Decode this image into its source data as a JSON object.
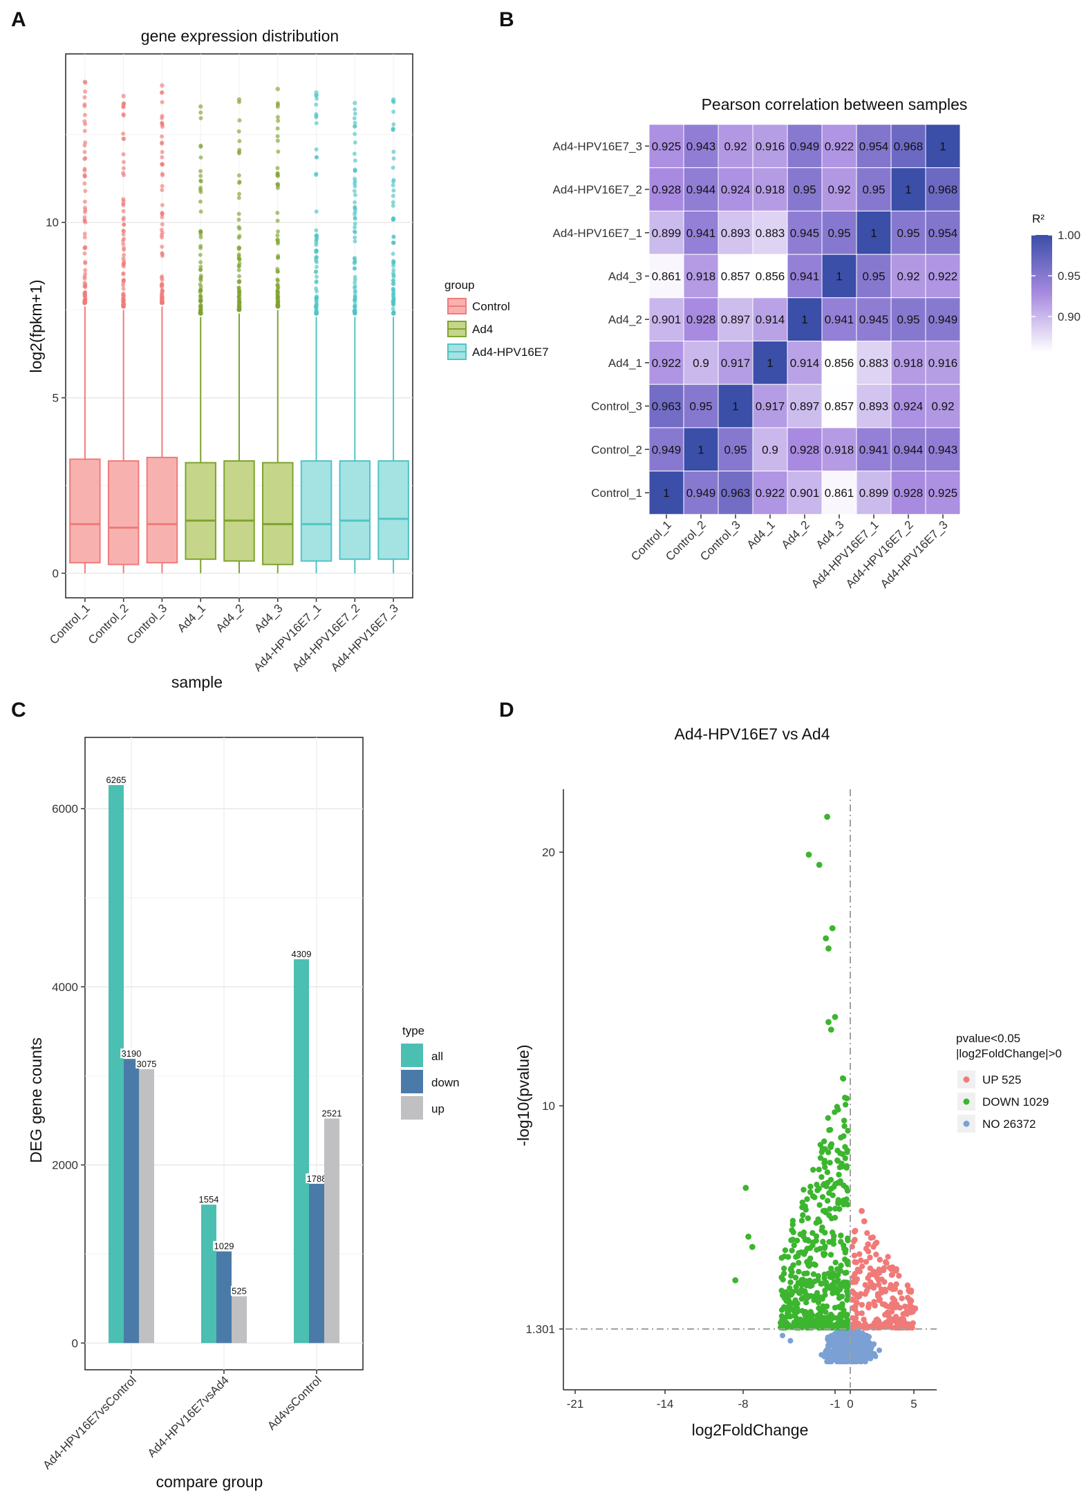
{
  "panels": {
    "A": "A",
    "B": "B",
    "C": "C",
    "D": "D"
  },
  "chart_data": [
    {
      "type": "box",
      "panel": "A",
      "title": "gene expression distribution",
      "xlabel": "sample",
      "ylabel": "log2(fpkm+1)",
      "ylim": [
        -0.7,
        14.8
      ],
      "yticks": [
        0,
        5,
        10
      ],
      "samples": [
        {
          "name": "Control_1",
          "group": "Control",
          "q1": 0.3,
          "median": 1.4,
          "q3": 3.25,
          "wmin": 0,
          "wmax": 7.6,
          "omax": 14.0
        },
        {
          "name": "Control_2",
          "group": "Control",
          "q1": 0.25,
          "median": 1.3,
          "q3": 3.2,
          "wmin": 0,
          "wmax": 7.5,
          "omax": 13.6
        },
        {
          "name": "Control_3",
          "group": "Control",
          "q1": 0.3,
          "median": 1.4,
          "q3": 3.3,
          "wmin": 0,
          "wmax": 7.6,
          "omax": 13.9
        },
        {
          "name": "Ad4_1",
          "group": "Ad4",
          "q1": 0.4,
          "median": 1.5,
          "q3": 3.15,
          "wmin": 0,
          "wmax": 7.3,
          "omax": 13.3
        },
        {
          "name": "Ad4_2",
          "group": "Ad4",
          "q1": 0.35,
          "median": 1.5,
          "q3": 3.2,
          "wmin": 0,
          "wmax": 7.4,
          "omax": 13.5
        },
        {
          "name": "Ad4_3",
          "group": "Ad4",
          "q1": 0.25,
          "median": 1.4,
          "q3": 3.15,
          "wmin": 0,
          "wmax": 7.5,
          "omax": 13.8
        },
        {
          "name": "Ad4-HPV16E7_1",
          "group": "Ad4-HPV16E7",
          "q1": 0.35,
          "median": 1.4,
          "q3": 3.2,
          "wmin": 0,
          "wmax": 7.3,
          "omax": 13.7
        },
        {
          "name": "Ad4-HPV16E7_2",
          "group": "Ad4-HPV16E7",
          "q1": 0.4,
          "median": 1.5,
          "q3": 3.2,
          "wmin": 0,
          "wmax": 7.3,
          "omax": 13.4
        },
        {
          "name": "Ad4-HPV16E7_3",
          "group": "Ad4-HPV16E7",
          "q1": 0.4,
          "median": 1.55,
          "q3": 3.2,
          "wmin": 0,
          "wmax": 7.3,
          "omax": 13.5
        }
      ],
      "legend": {
        "title": "group",
        "items": [
          {
            "label": "Control",
            "fill": "#f7b2b0",
            "stroke": "#ef7b79"
          },
          {
            "label": "Ad4",
            "fill": "#c5d68a",
            "stroke": "#7fa32f"
          },
          {
            "label": "Ad4-HPV16E7",
            "fill": "#a4e3e2",
            "stroke": "#4fc5c6"
          }
        ]
      }
    },
    {
      "type": "heatmap",
      "panel": "B",
      "title": "Pearson correlation between samples",
      "x": [
        "Control_1",
        "Control_2",
        "Control_3",
        "Ad4_1",
        "Ad4_2",
        "Ad4_3",
        "Ad4-HPV16E7_1",
        "Ad4-HPV16E7_2",
        "Ad4-HPV16E7_3"
      ],
      "y": [
        "Ad4-HPV16E7_3",
        "Ad4-HPV16E7_2",
        "Ad4-HPV16E7_1",
        "Ad4_3",
        "Ad4_2",
        "Ad4_1",
        "Control_3",
        "Control_2",
        "Control_1"
      ],
      "values": [
        [
          "0.925",
          "0.943",
          "0.92",
          "0.916",
          "0.949",
          "0.922",
          "0.954",
          "0.968",
          "1"
        ],
        [
          "0.928",
          "0.944",
          "0.924",
          "0.918",
          "0.95",
          "0.92",
          "0.95",
          "1",
          "0.968"
        ],
        [
          "0.899",
          "0.941",
          "0.893",
          "0.883",
          "0.945",
          "0.95",
          "1",
          "0.95",
          "0.954"
        ],
        [
          "0.861",
          "0.918",
          "0.857",
          "0.856",
          "0.941",
          "1",
          "0.95",
          "0.92",
          "0.922"
        ],
        [
          "0.901",
          "0.928",
          "0.897",
          "0.914",
          "1",
          "0.941",
          "0.945",
          "0.95",
          "0.949"
        ],
        [
          "0.922",
          "0.9",
          "0.917",
          "1",
          "0.914",
          "0.856",
          "0.883",
          "0.918",
          "0.916"
        ],
        [
          "0.963",
          "0.95",
          "1",
          "0.917",
          "0.897",
          "0.857",
          "0.893",
          "0.924",
          "0.92"
        ],
        [
          "0.949",
          "1",
          "0.95",
          "0.9",
          "0.928",
          "0.918",
          "0.941",
          "0.944",
          "0.943"
        ],
        [
          "1",
          "0.949",
          "0.963",
          "0.922",
          "0.901",
          "0.861",
          "0.899",
          "0.928",
          "0.925"
        ]
      ],
      "colorbar": {
        "title": "R²",
        "ticks": [
          "1.00",
          "0.95",
          "0.90"
        ],
        "range": [
          0.856,
          1.0
        ],
        "low": "#ffffff",
        "mid": "#a88be0",
        "high": "#3b4ea8"
      }
    },
    {
      "type": "bar",
      "panel": "C",
      "xlabel": "compare group",
      "ylabel": "DEG gene counts",
      "ylim": [
        -300,
        6800
      ],
      "yticks": [
        0,
        2000,
        4000,
        6000
      ],
      "categories": [
        "Ad4-HPV16E7vsControl",
        "Ad4-HPV16E7vsAd4",
        "Ad4vsControl"
      ],
      "series": [
        {
          "name": "all",
          "color": "#4bbfb2",
          "values": [
            6265,
            1554,
            4309
          ]
        },
        {
          "name": "down",
          "color": "#4a7aa8",
          "values": [
            3190,
            1029,
            1788
          ]
        },
        {
          "name": "up",
          "color": "#c0bfc2",
          "values": [
            3075,
            525,
            2521
          ]
        }
      ],
      "legend_title": "type"
    },
    {
      "type": "scatter",
      "panel": "D",
      "title": "Ad4-HPV16E7 vs Ad4",
      "xlabel": "log2FoldChange",
      "ylabel": "-log10(pvalue)",
      "xticks": [
        "-21",
        "-14",
        "-8",
        "-1",
        "0",
        "5"
      ],
      "yticks": [
        "20",
        "10",
        "1.301"
      ],
      "threshold_y": "1.301",
      "legend": {
        "title_lines": [
          "pvalue<0.05",
          "|log2FoldChange|>0"
        ],
        "items": [
          {
            "label": "UP 525",
            "color": "#f07a78"
          },
          {
            "label": "DOWN 1029",
            "color": "#3cb52f"
          },
          {
            "label": "NO 26372",
            "color": "#7aa0d4"
          }
        ]
      },
      "down_highlights": [
        {
          "x": -1.6,
          "y": 21.4
        },
        {
          "x": -3.0,
          "y": 19.9
        },
        {
          "x": -2.2,
          "y": 19.5
        },
        {
          "x": -1.2,
          "y": 17.0
        },
        {
          "x": -1.7,
          "y": 16.6
        },
        {
          "x": -1.5,
          "y": 16.2
        },
        {
          "x": -1.0,
          "y": 13.5
        },
        {
          "x": -1.5,
          "y": 13.3
        },
        {
          "x": -1.3,
          "y": 13.0
        },
        {
          "x": -7.8,
          "y": 6.8
        },
        {
          "x": -7.6,
          "y": 4.9
        },
        {
          "x": -7.3,
          "y": 4.5
        },
        {
          "x": -8.6,
          "y": 3.2
        }
      ]
    }
  ]
}
